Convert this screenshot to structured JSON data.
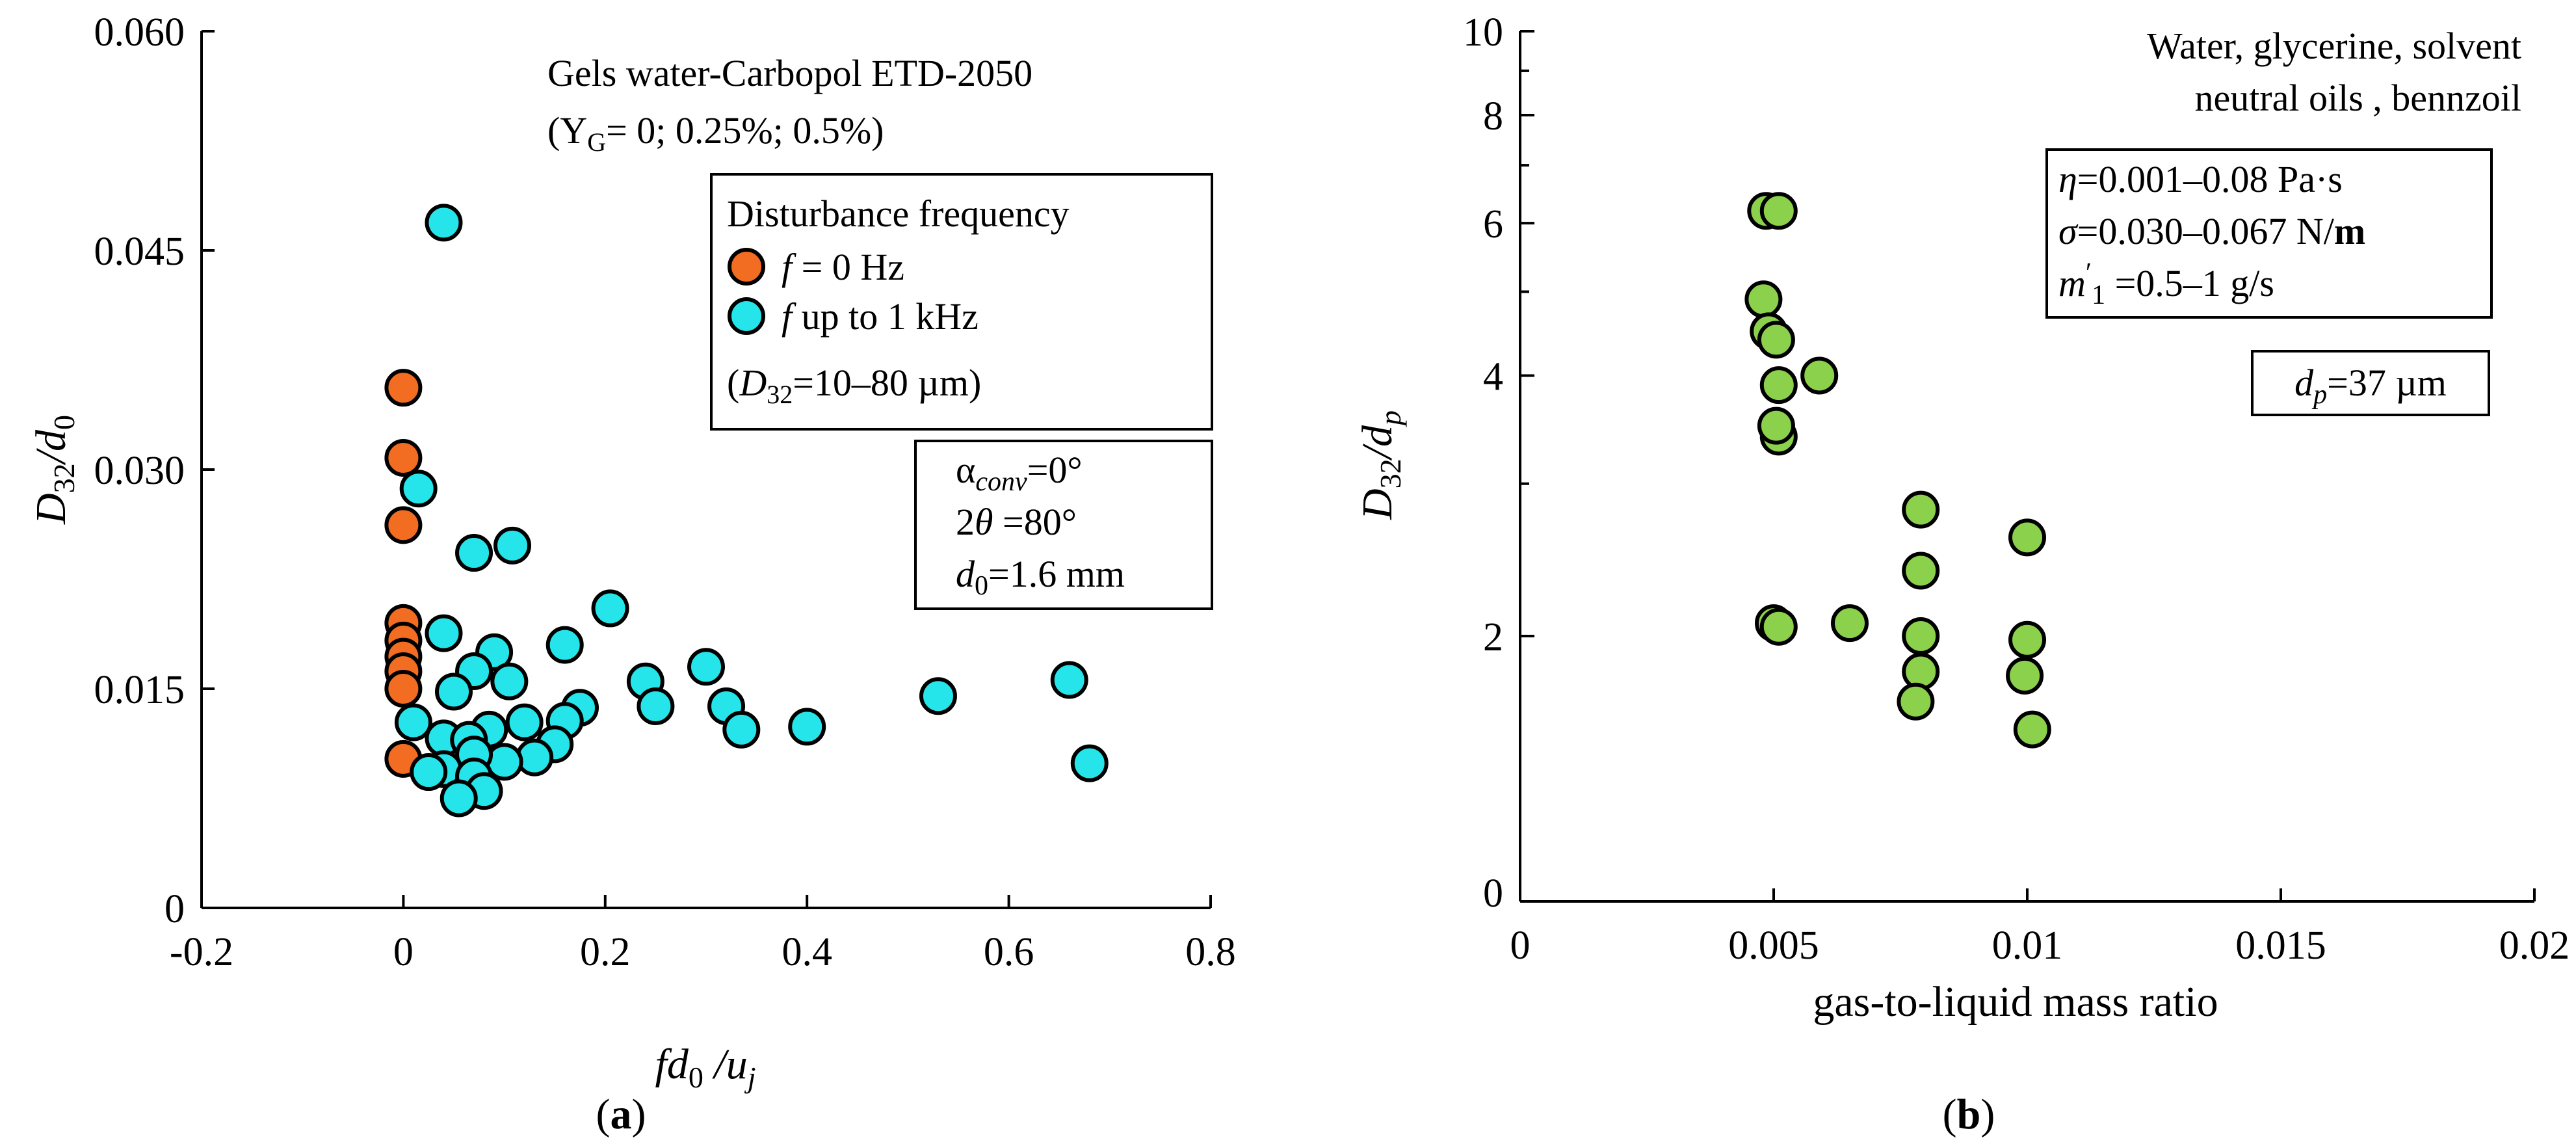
{
  "chart_data": [
    {
      "id": "a",
      "type": "scatter",
      "panel_label": "(a)",
      "xlabel": "fd0/uj",
      "ylabel": "D32/d0",
      "xlim": [
        -0.2,
        0.8
      ],
      "ylim": [
        0,
        0.06
      ],
      "x_ticks": [
        -0.2,
        0,
        0.2,
        0.4,
        0.6,
        0.8
      ],
      "x_tick_labels": [
        "-0.2",
        "0",
        "0.2",
        "0.4",
        "0.6",
        "0.8"
      ],
      "y_ticks": [
        0,
        0.015,
        0.03,
        0.045,
        0.06
      ],
      "y_tick_labels": [
        "0",
        "0.015",
        "0.030",
        "0.045",
        "0.060"
      ],
      "annotation_title": "Gels water-Carbopol ETD-2050",
      "annotation_sub": "(Y",
      "annotation_sub_g": "G",
      "annotation_sub_rest": "= 0; 0.25%; 0.5%)",
      "legend_title": "Disturbance frequency",
      "legend_note": "(D32=10–80 µm)",
      "params": [
        "αconv=0°",
        "2θ =80°",
        "d0=1.6 mm"
      ],
      "series": [
        {
          "name": "f = 0 Hz",
          "color": "#f26d21",
          "points": [
            [
              0,
              0.0356
            ],
            [
              0,
              0.0308
            ],
            [
              0,
              0.0262
            ],
            [
              0,
              0.0195
            ],
            [
              0,
              0.0183
            ],
            [
              0,
              0.0172
            ],
            [
              0,
              0.0162
            ],
            [
              0,
              0.015
            ],
            [
              0,
              0.0102
            ]
          ]
        },
        {
          "name": "f up to 1 kHz",
          "color": "#25e5ea",
          "points": [
            [
              0.04,
              0.0469
            ],
            [
              0.015,
              0.0287
            ],
            [
              0.07,
              0.0243
            ],
            [
              0.108,
              0.0248
            ],
            [
              0.205,
              0.0205
            ],
            [
              0.04,
              0.0188
            ],
            [
              0.16,
              0.018
            ],
            [
              0.09,
              0.0175
            ],
            [
              0.07,
              0.0162
            ],
            [
              0.105,
              0.0155
            ],
            [
              0.05,
              0.0148
            ],
            [
              0.24,
              0.0155
            ],
            [
              0.3,
              0.0165
            ],
            [
              0.32,
              0.0138
            ],
            [
              0.335,
              0.0122
            ],
            [
              0.25,
              0.0138
            ],
            [
              0.175,
              0.0137
            ],
            [
              0.16,
              0.0128
            ],
            [
              0.12,
              0.0127
            ],
            [
              0.085,
              0.0122
            ],
            [
              0.01,
              0.0127
            ],
            [
              0.04,
              0.0116
            ],
            [
              0.065,
              0.0115
            ],
            [
              0.15,
              0.0112
            ],
            [
              0.13,
              0.0103
            ],
            [
              0.1,
              0.01
            ],
            [
              0.07,
              0.0105
            ],
            [
              0.04,
              0.0095
            ],
            [
              0.025,
              0.0093
            ],
            [
              0.07,
              0.009
            ],
            [
              0.08,
              0.008
            ],
            [
              0.055,
              0.0075
            ],
            [
              0.4,
              0.0124
            ],
            [
              0.53,
              0.0145
            ],
            [
              0.66,
              0.0156
            ],
            [
              0.68,
              0.0099
            ]
          ]
        }
      ]
    },
    {
      "id": "b",
      "type": "scatter",
      "panel_label": "(b)",
      "xlabel": "gas-to-liquid mass ratio",
      "ylabel": "D32/dp",
      "xlim": [
        0,
        0.02
      ],
      "y_scale": "log",
      "x_ticks": [
        0,
        0.005,
        0.01,
        0.015,
        0.02
      ],
      "x_tick_labels": [
        "0",
        "0.005",
        "0.01",
        "0.015",
        "0.02"
      ],
      "y_ticks": [
        2,
        4,
        6,
        8,
        10
      ],
      "y_tick_labels": [
        "2",
        "4",
        "6",
        "8",
        "10"
      ],
      "y_bottom_label": "0",
      "annotation_lines": [
        "Water, glycerine, solvent",
        "neutral oils , bennzoil"
      ],
      "params": [
        "η=0.001–0.08 Pa·s",
        "σ=0.030–0.067 N/m",
        "m′1 =0.5–1 g/s"
      ],
      "dp_note": "dp=37 µm",
      "series": [
        {
          "name": "data",
          "color": "#8cd14b",
          "points": [
            [
              0.00485,
              6.2
            ],
            [
              0.0051,
              6.2
            ],
            [
              0.0048,
              4.9
            ],
            [
              0.0049,
              4.5
            ],
            [
              0.00505,
              4.4
            ],
            [
              0.0051,
              3.9
            ],
            [
              0.0051,
              3.4
            ],
            [
              0.00505,
              3.5
            ],
            [
              0.0059,
              4.0
            ],
            [
              0.005,
              2.07
            ],
            [
              0.0051,
              2.05
            ],
            [
              0.0065,
              2.07
            ],
            [
              0.0079,
              2.8
            ],
            [
              0.0079,
              2.38
            ],
            [
              0.0079,
              2.0
            ],
            [
              0.0079,
              1.82
            ],
            [
              0.0078,
              1.68
            ],
            [
              0.01,
              2.6
            ],
            [
              0.01,
              1.98
            ],
            [
              0.00995,
              1.8
            ],
            [
              0.0101,
              1.56
            ]
          ]
        }
      ]
    }
  ]
}
